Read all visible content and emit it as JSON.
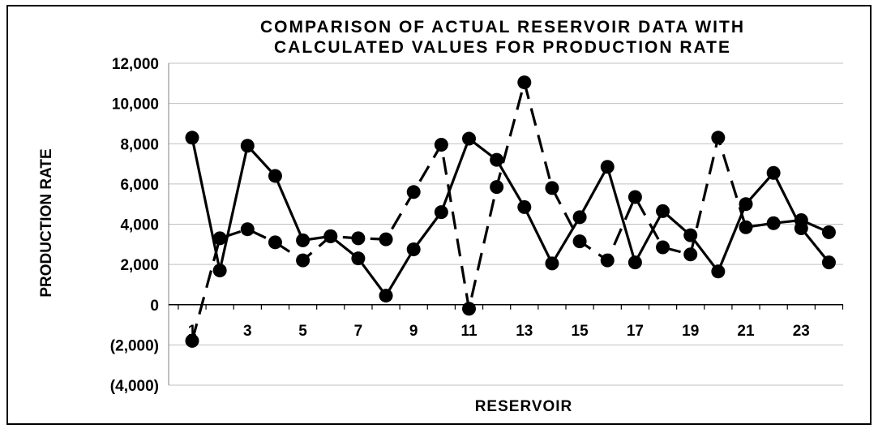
{
  "chart_data": {
    "type": "line",
    "title": [
      "COMPARISON OF ACTUAL RESERVOIR DATA WITH",
      "CALCULATED VALUES FOR PRODUCTION RATE"
    ],
    "xlabel": "RESERVOIR",
    "ylabel": "PRODUCTION RATE",
    "ylim": [
      -4000,
      12000
    ],
    "ytick_values": [
      12000,
      10000,
      8000,
      6000,
      4000,
      2000,
      0,
      -2000,
      -4000
    ],
    "ytick_labels": [
      "12,000",
      "10,000",
      "8,000",
      "6,000",
      "4,000",
      "2,000",
      "0",
      "(2,000)",
      "(4,000)"
    ],
    "x": [
      1,
      2,
      3,
      4,
      5,
      6,
      7,
      8,
      9,
      10,
      11,
      12,
      13,
      14,
      15,
      16,
      17,
      18,
      19,
      20,
      21,
      22,
      23,
      24
    ],
    "xtick_labels": [
      "1",
      "3",
      "5",
      "7",
      "9",
      "11",
      "13",
      "15",
      "17",
      "19",
      "21",
      "23"
    ],
    "xtick_positions": [
      1,
      3,
      5,
      7,
      9,
      11,
      13,
      15,
      17,
      19,
      21,
      23
    ],
    "grid": true,
    "series": [
      {
        "style": "solid",
        "color": "#000000",
        "values": [
          8300,
          1700,
          7900,
          6400,
          3200,
          3400,
          2300,
          450,
          2750,
          4600,
          8250,
          7200,
          4850,
          2050,
          4350,
          6850,
          2100,
          4650,
          3450,
          1650,
          5000,
          6550,
          3800,
          2100
        ]
      },
      {
        "style": "dashed",
        "color": "#000000",
        "values": [
          -1800,
          3300,
          3750,
          3100,
          2200,
          3400,
          3300,
          3250,
          5600,
          7950,
          -200,
          5850,
          11050,
          5800,
          3150,
          2200,
          5350,
          2850,
          2500,
          8300,
          3850,
          4050,
          4200,
          3600
        ]
      }
    ]
  }
}
